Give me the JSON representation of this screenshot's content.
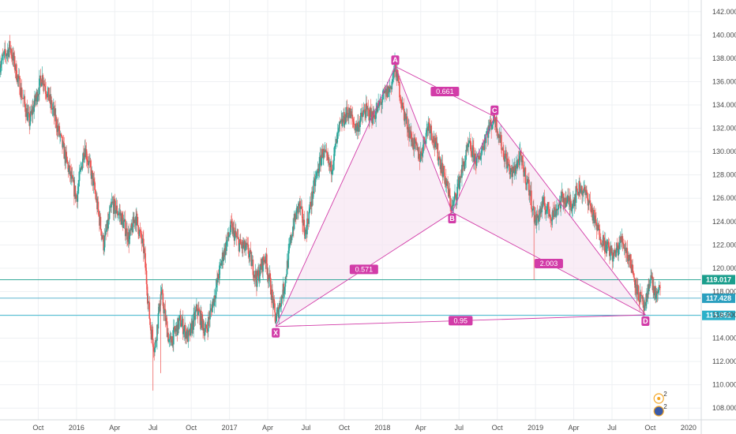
{
  "chart_data": {
    "type": "candlestick",
    "xlabel": "",
    "ylabel": "",
    "grid": true,
    "ylim": [
      107,
      143
    ],
    "x_range_months": [
      "2015-07",
      "2020-02"
    ],
    "y_ticks": [
      108,
      110,
      112,
      114,
      116,
      118,
      120,
      122,
      124,
      126,
      128,
      130,
      132,
      134,
      136,
      138,
      140,
      142
    ],
    "y_tick_labels": [
      "108.000",
      "110.000",
      "112.000",
      "114.000",
      "116.000",
      "118.000",
      "120.000",
      "122.000",
      "124.000",
      "126.000",
      "128.000",
      "130.000",
      "132.000",
      "134.000",
      "136.000",
      "138.000",
      "140.000",
      "142.000"
    ],
    "x_ticks": [
      {
        "label": "Oct",
        "date": "2015-10"
      },
      {
        "label": "2016",
        "date": "2016-01"
      },
      {
        "label": "Apr",
        "date": "2016-04"
      },
      {
        "label": "Jul",
        "date": "2016-07"
      },
      {
        "label": "Oct",
        "date": "2016-10"
      },
      {
        "label": "2017",
        "date": "2017-01"
      },
      {
        "label": "Apr",
        "date": "2017-04"
      },
      {
        "label": "Jul",
        "date": "2017-07"
      },
      {
        "label": "Oct",
        "date": "2017-10"
      },
      {
        "label": "2018",
        "date": "2018-01"
      },
      {
        "label": "Apr",
        "date": "2018-04"
      },
      {
        "label": "Jul",
        "date": "2018-07"
      },
      {
        "label": "Oct",
        "date": "2018-10"
      },
      {
        "label": "2019",
        "date": "2019-01"
      },
      {
        "label": "Apr",
        "date": "2019-04"
      },
      {
        "label": "Jul",
        "date": "2019-07"
      },
      {
        "label": "Oct",
        "date": "2019-10"
      },
      {
        "label": "2020",
        "date": "2020-01"
      }
    ],
    "price_path": [
      [
        "2015-07",
        137.5
      ],
      [
        "2015-07-25",
        139.0
      ],
      [
        "2015-08-15",
        136.0
      ],
      [
        "2015-09-10",
        132.5
      ],
      [
        "2015-10-10",
        136.5
      ],
      [
        "2015-11-10",
        133.0
      ],
      [
        "2015-12-05",
        129.5
      ],
      [
        "2016-01-01",
        126.0
      ],
      [
        "2016-01-20",
        130.5
      ],
      [
        "2016-02-10",
        127.5
      ],
      [
        "2016-03-05",
        122.0
      ],
      [
        "2016-03-25",
        125.5
      ],
      [
        "2016-04-15",
        124.5
      ],
      [
        "2016-05-05",
        122.5
      ],
      [
        "2016-05-20",
        124.5
      ],
      [
        "2016-06-10",
        121.5
      ],
      [
        "2016-06-25",
        115.0
      ],
      [
        "2016-07-05",
        113.0
      ],
      [
        "2016-07-20",
        118.0
      ],
      [
        "2016-08-10",
        113.5
      ],
      [
        "2016-09-05",
        115.5
      ],
      [
        "2016-09-25",
        114.0
      ],
      [
        "2016-10-15",
        116.5
      ],
      [
        "2016-11-05",
        114.5
      ],
      [
        "2016-11-25",
        117.5
      ],
      [
        "2016-12-15",
        121.0
      ],
      [
        "2017-01-05",
        123.5
      ],
      [
        "2017-01-25",
        122.0
      ],
      [
        "2017-02-15",
        121.5
      ],
      [
        "2017-03-05",
        119.0
      ],
      [
        "2017-03-25",
        121.0
      ],
      [
        "2017-04-05",
        119.0
      ],
      [
        "2017-04-20",
        115.5
      ],
      [
        "2017-05-10",
        118.5
      ],
      [
        "2017-05-30",
        123.5
      ],
      [
        "2017-06-15",
        125.5
      ],
      [
        "2017-06-30",
        123.0
      ],
      [
        "2017-07-20",
        127.0
      ],
      [
        "2017-08-10",
        130.0
      ],
      [
        "2017-08-30",
        128.5
      ],
      [
        "2017-09-20",
        132.0
      ],
      [
        "2017-10-10",
        133.5
      ],
      [
        "2017-10-30",
        132.0
      ],
      [
        "2017-11-20",
        133.5
      ],
      [
        "2017-12-10",
        133.0
      ],
      [
        "2018-01-01",
        134.5
      ],
      [
        "2018-01-20",
        135.5
      ],
      [
        "2018-02-01",
        137.3
      ],
      [
        "2018-02-20",
        133.5
      ],
      [
        "2018-03-10",
        131.0
      ],
      [
        "2018-03-30",
        129.5
      ],
      [
        "2018-04-20",
        132.5
      ],
      [
        "2018-05-10",
        130.0
      ],
      [
        "2018-05-30",
        127.5
      ],
      [
        "2018-06-15",
        125.0
      ],
      [
        "2018-07-05",
        128.0
      ],
      [
        "2018-07-25",
        130.5
      ],
      [
        "2018-08-15",
        129.0
      ],
      [
        "2018-09-05",
        131.5
      ],
      [
        "2018-09-25",
        133.0
      ],
      [
        "2018-10-15",
        130.0
      ],
      [
        "2018-11-05",
        128.0
      ],
      [
        "2018-11-25",
        129.5
      ],
      [
        "2018-12-15",
        127.0
      ],
      [
        "2019-01-01",
        124.0
      ],
      [
        "2019-01-20",
        125.5
      ],
      [
        "2019-02-10",
        124.5
      ],
      [
        "2019-03-05",
        126.0
      ],
      [
        "2019-03-25",
        125.5
      ],
      [
        "2019-04-15",
        127.0
      ],
      [
        "2019-05-05",
        126.0
      ],
      [
        "2019-05-25",
        123.5
      ],
      [
        "2019-06-15",
        122.0
      ],
      [
        "2019-07-05",
        121.0
      ],
      [
        "2019-07-25",
        122.5
      ],
      [
        "2019-08-15",
        120.5
      ],
      [
        "2019-09-01",
        118.0
      ],
      [
        "2019-09-20",
        116.3
      ],
      [
        "2019-10-01",
        119.5
      ],
      [
        "2019-10-10",
        118.0
      ],
      [
        "2019-10-20",
        117.4
      ],
      [
        "2019-10-25",
        119.0
      ]
    ],
    "candle_colors": {
      "up": "#26a69a",
      "down": "#ef5350"
    },
    "pattern": {
      "points": [
        {
          "name": "X",
          "date": "2017-04-20",
          "price": 115.0
        },
        {
          "name": "A",
          "date": "2018-02-01",
          "price": 137.3
        },
        {
          "name": "B",
          "date": "2018-06-15",
          "price": 124.8
        },
        {
          "name": "C",
          "date": "2018-09-25",
          "price": 133.0
        },
        {
          "name": "D",
          "date": "2019-09-20",
          "price": 116.0
        }
      ],
      "ratios": [
        {
          "label": "0.661",
          "from": "A",
          "to": "C"
        },
        {
          "label": "0.571",
          "from": "X",
          "to": "B"
        },
        {
          "label": "2.003",
          "from": "B",
          "to": "D"
        },
        {
          "label": "0.95",
          "from": "X",
          "to": "D"
        }
      ],
      "color": "#d23ca8",
      "fill": "#f6e6f2"
    },
    "horizontal_levels": [
      {
        "price": 119.017,
        "label": "119.017",
        "color": "#1a9e8c"
      },
      {
        "price": 117.428,
        "label": "117.428",
        "color": "#2a9fbf"
      },
      {
        "price": 115.952,
        "label": "115.952",
        "color": "#2bb0c9"
      }
    ],
    "event_markers": [
      {
        "label": "2",
        "date": "2019-10-10",
        "icon": "event-icon"
      },
      {
        "label": "2",
        "date": "2019-10-10",
        "icon": "earnings-icon"
      }
    ]
  }
}
